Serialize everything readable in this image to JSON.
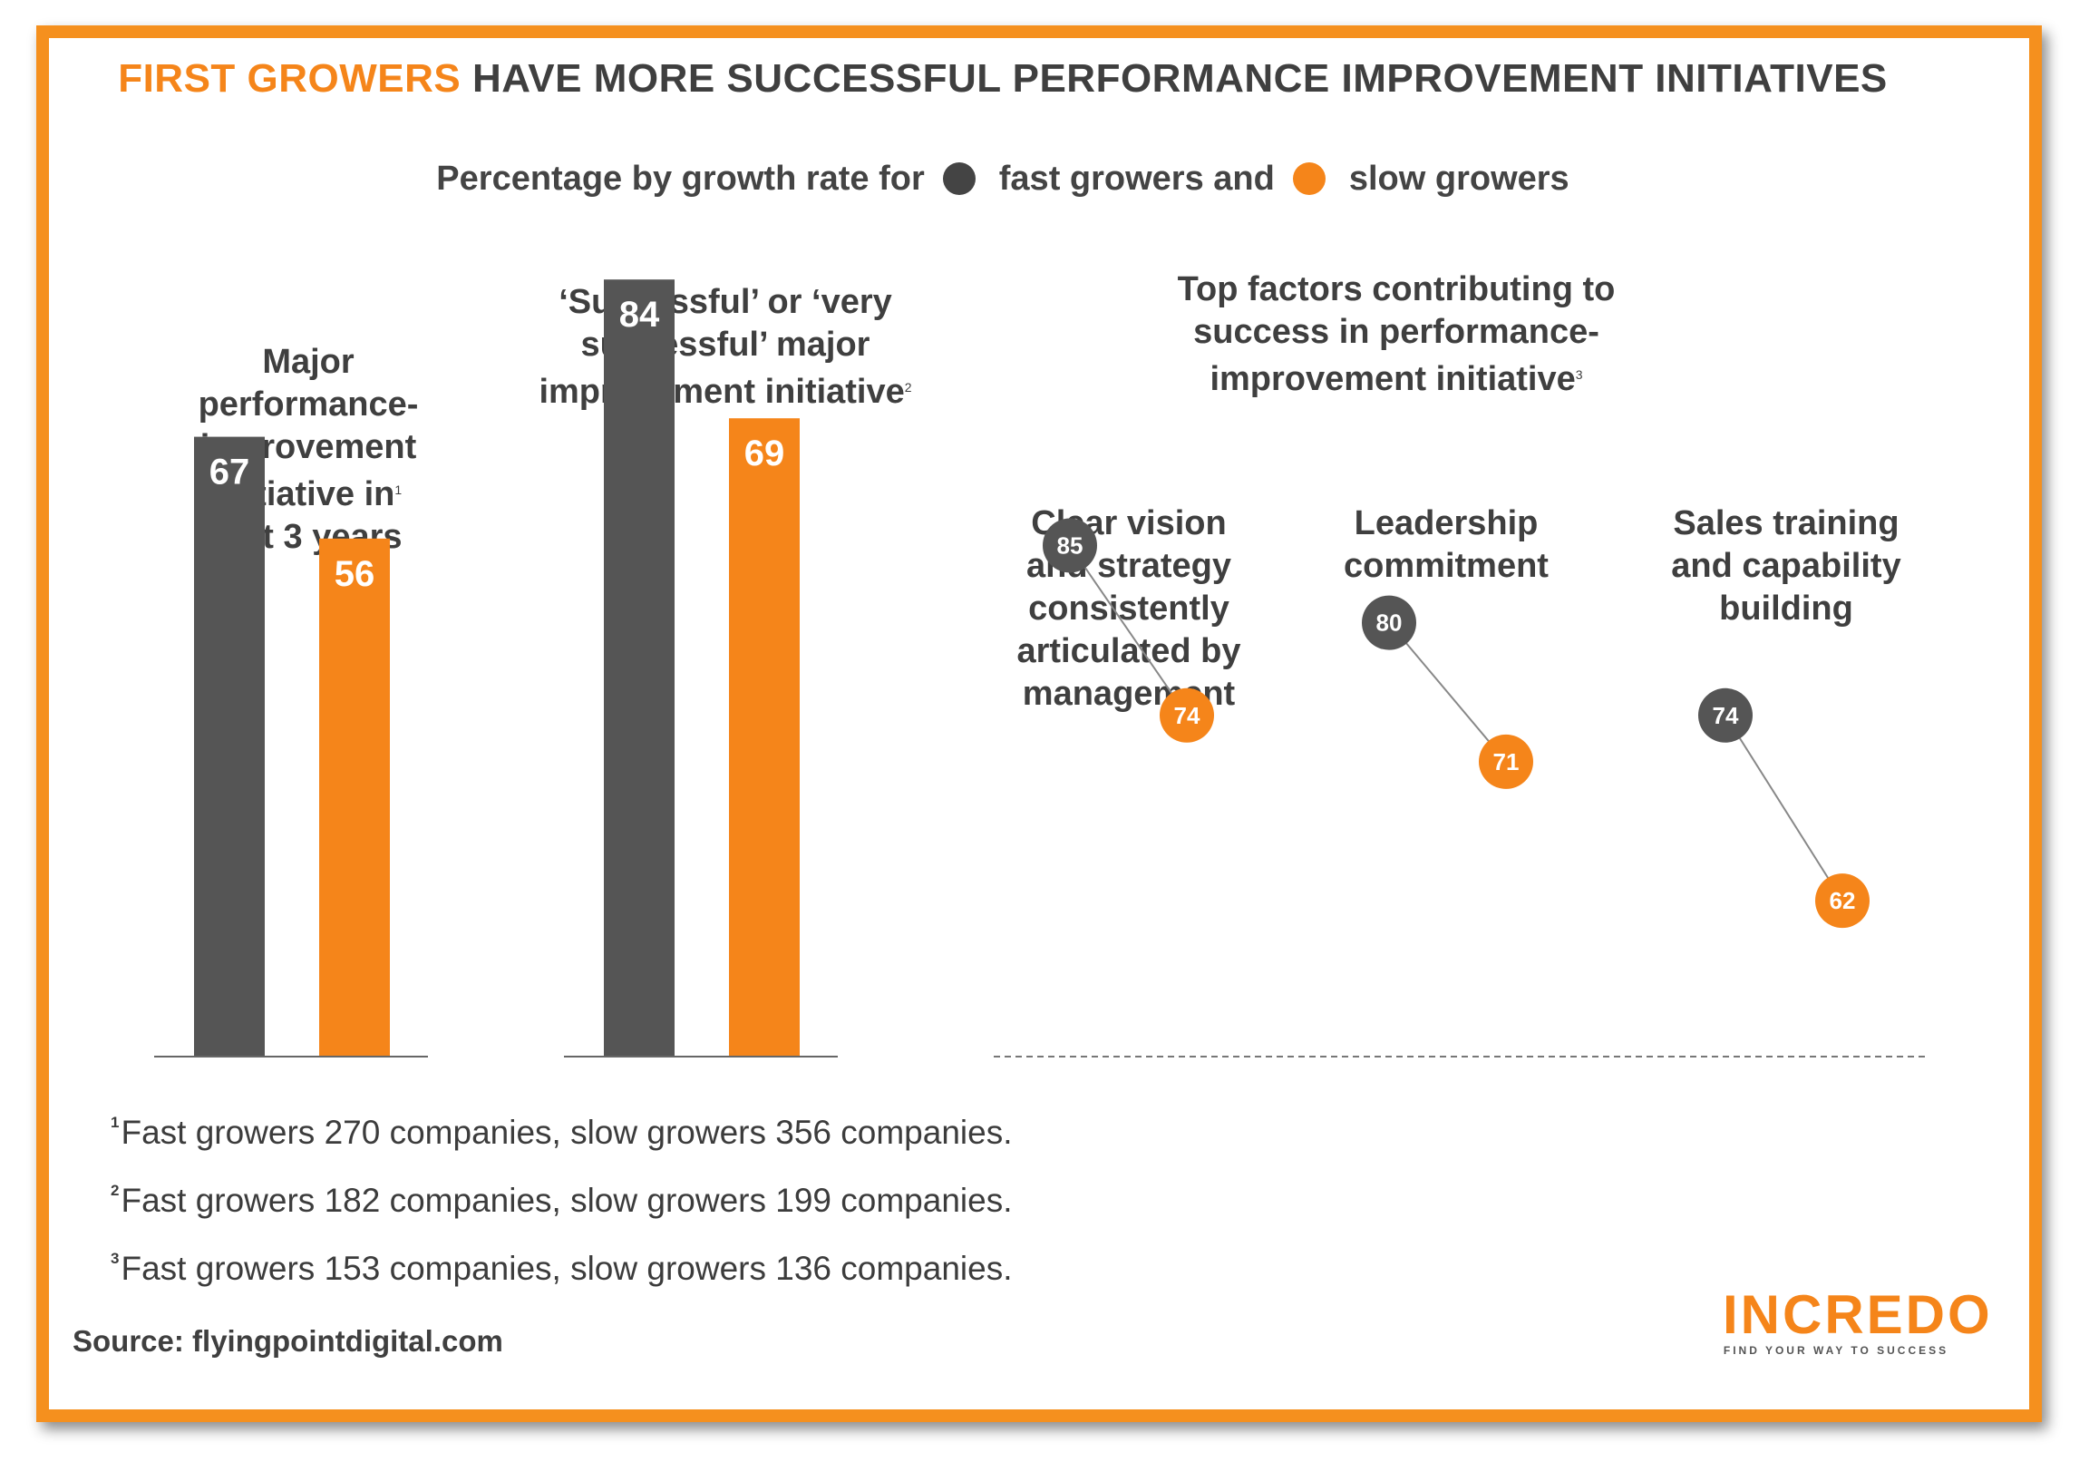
{
  "title": {
    "highlight": "FIRST GROWERS",
    "rest": " HAVE MORE SUCCESSFUL PERFORMANCE IMPROVEMENT INITIATIVES"
  },
  "legend": {
    "prefix": "Percentage by growth rate for",
    "fast_label": "fast growers and",
    "slow_label": "slow growers"
  },
  "colors": {
    "fast": "#555555",
    "slow": "#f5851a",
    "accent": "#f5901e"
  },
  "chart_data": [
    {
      "type": "bar",
      "title": "Major performance-improvement initiative in last 3 years",
      "title_lines": [
        "Major",
        "performance-",
        "improvement",
        "initiative in",
        "last 3 years"
      ],
      "footnote_ref": "1",
      "series": [
        {
          "name": "fast growers",
          "values": [
            67
          ]
        },
        {
          "name": "slow growers",
          "values": [
            56
          ]
        }
      ],
      "ylim": [
        0,
        100
      ]
    },
    {
      "type": "bar",
      "title": "‘Successful’ or ‘very successful’ major improvement initiative",
      "title_lines": [
        "‘Successful’ or ‘very",
        "successful’ major",
        "improvement initiative"
      ],
      "footnote_ref": "2",
      "series": [
        {
          "name": "fast growers",
          "values": [
            84
          ]
        },
        {
          "name": "slow growers",
          "values": [
            69
          ]
        }
      ],
      "ylim": [
        0,
        100
      ]
    },
    {
      "type": "scatter",
      "title": "Top factors contributing to success in performance-improvement initiative",
      "title_lines": [
        "Top factors contributing to",
        "success in performance-",
        "improvement initiative"
      ],
      "footnote_ref": "3",
      "categories": [
        "Clear vision and strategy consistently articulated by management",
        "Leadership commitment",
        "Sales training and capability building"
      ],
      "category_lines": [
        [
          "Clear vision",
          "and strategy",
          "consistently",
          "articulated by",
          "management"
        ],
        [
          "Leadership",
          "commitment"
        ],
        [
          "Sales training",
          "and capability",
          "building"
        ]
      ],
      "series": [
        {
          "name": "fast growers",
          "values": [
            85,
            80,
            74
          ]
        },
        {
          "name": "slow growers",
          "values": [
            74,
            71,
            62
          ]
        }
      ]
    }
  ],
  "footnotes": [
    {
      "ref": "1",
      "text": "Fast growers 270 companies, slow growers 356 companies."
    },
    {
      "ref": "2",
      "text": "Fast growers 182 companies, slow growers 199 companies."
    },
    {
      "ref": "3",
      "text": "Fast growers 153 companies, slow growers 136 companies."
    }
  ],
  "source": "Source: flyingpointdigital.com",
  "logo": {
    "word": "INCREDO",
    "tagline": "FIND YOUR WAY TO SUCCESS"
  }
}
